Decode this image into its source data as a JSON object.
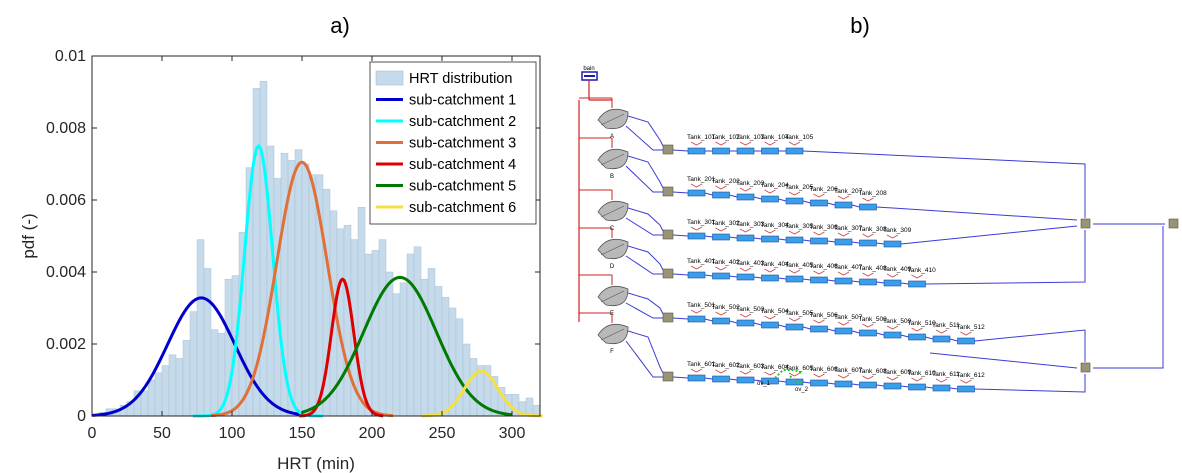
{
  "panel_labels": {
    "a": "a)",
    "b": "b)"
  },
  "chart_data": {
    "type": "bar",
    "xlabel": "HRT (min)",
    "ylabel": "pdf (-)",
    "xlim": [
      0,
      320
    ],
    "ylim": [
      0,
      0.01
    ],
    "xticks": [
      "0",
      "50",
      "100",
      "150",
      "200",
      "250",
      "300"
    ],
    "yticks": [
      "0",
      "0.002",
      "0.004",
      "0.006",
      "0.008",
      "0.01"
    ],
    "grid": false,
    "legend_position": "top-right",
    "histogram": {
      "name": "HRT distribution",
      "color": "#c5daea",
      "bin_start": 0,
      "bin_width": 5,
      "values": [
        0.0,
        0.0001,
        0.0002,
        0.0002,
        0.0003,
        0.0004,
        0.0007,
        0.0007,
        0.001,
        0.0012,
        0.0014,
        0.0017,
        0.0016,
        0.0021,
        0.0029,
        0.0049,
        0.0041,
        0.0024,
        0.0023,
        0.0038,
        0.0039,
        0.0051,
        0.0069,
        0.0091,
        0.0093,
        0.0075,
        0.0066,
        0.0073,
        0.0071,
        0.0074,
        0.007,
        0.0067,
        0.0067,
        0.0063,
        0.0057,
        0.0052,
        0.0053,
        0.0049,
        0.0058,
        0.0045,
        0.0046,
        0.0049,
        0.004,
        0.0034,
        0.0037,
        0.0045,
        0.0047,
        0.0038,
        0.0041,
        0.0036,
        0.0033,
        0.003,
        0.0027,
        0.002,
        0.0016,
        0.0014,
        0.0014,
        0.0011,
        0.0008,
        0.0006,
        0.0006,
        0.0004,
        0.0005,
        0.0003
      ]
    },
    "series": [
      {
        "name": "sub-catchment 1",
        "color": "#0000cc",
        "mean": 78,
        "sd": 24,
        "peak": 0.00328,
        "x_range": [
          0,
          150
        ]
      },
      {
        "name": "sub-catchment 2",
        "color": "#00ffff",
        "mean": 119,
        "sd": 10,
        "peak": 0.0075,
        "x_range": [
          72,
          165
        ]
      },
      {
        "name": "sub-catchment 3",
        "color": "#e07038",
        "mean": 150,
        "sd": 18,
        "peak": 0.00705,
        "x_range": [
          85,
          215
        ]
      },
      {
        "name": "sub-catchment 4",
        "color": "#dd0000",
        "mean": 179,
        "sd": 8,
        "peak": 0.0038,
        "x_range": [
          148,
          208
        ]
      },
      {
        "name": "sub-catchment 5",
        "color": "#007a00",
        "mean": 220,
        "sd": 26,
        "peak": 0.00385,
        "x_range": [
          150,
          300
        ]
      },
      {
        "name": "sub-catchment 6",
        "color": "#f5e042",
        "mean": 278,
        "sd": 12,
        "peak": 0.00125,
        "x_range": [
          235,
          322
        ]
      }
    ]
  },
  "network": {
    "top_node_label": "bain",
    "catchment_labels": [
      "A",
      "B",
      "C",
      "D",
      "E",
      "F"
    ],
    "rows": [
      [
        "Tank_101",
        "Tank_102",
        "Tank_103",
        "Tank_104",
        "Tank_105"
      ],
      [
        "Tank_201",
        "Tank_202",
        "Tank_203",
        "Tank_204",
        "Tank_205",
        "Tank_206",
        "Tank_207",
        "Tank_208"
      ],
      [
        "Tank_301",
        "Tank_302",
        "Tank_303",
        "Tank_304",
        "Tank_305",
        "Tank_306",
        "Tank_307",
        "Tank_308",
        "Tank_309"
      ],
      [
        "Tank_401",
        "Tank_402",
        "Tank_403",
        "Tank_404",
        "Tank_405",
        "Tank_406",
        "Tank_407",
        "Tank_408",
        "Tank_409",
        "Tank_410"
      ],
      [
        "Tank_501",
        "Tank_502",
        "Tank_503",
        "Tank_504",
        "Tank_505",
        "Tank_506",
        "Tank_507",
        "Tank_508",
        "Tank_509",
        "Tank_510",
        "Tank_511",
        "Tank_512"
      ],
      [
        "Tank_601",
        "Tank_602",
        "Tank_603",
        "Tank_604",
        "Tank_605",
        "Tank_606",
        "Tank_607",
        "Tank_608",
        "Tank_609",
        "Tank_610",
        "Tank_611",
        "Tank_612"
      ]
    ],
    "small_labels": [
      "ov_1",
      "ov_2"
    ]
  }
}
